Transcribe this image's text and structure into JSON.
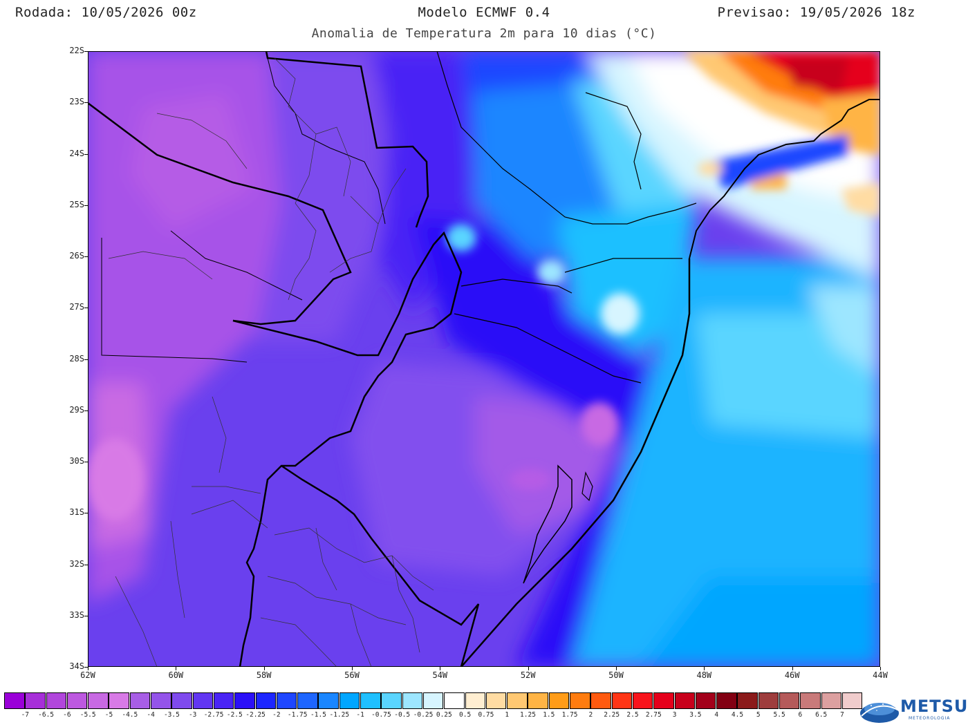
{
  "header": {
    "run": "Rodada: 10/05/2026 00z",
    "model": "Modelo ECMWF 0.4",
    "valid": "Previsao: 19/05/2026 18z",
    "subtitle": "Anomalia de Temperatura 2m para 10 dias (°C)"
  },
  "map": {
    "lon_range": [
      -62,
      -44
    ],
    "lat_range": [
      -34,
      -22
    ],
    "y_ticks": [
      "22S",
      "23S",
      "24S",
      "25S",
      "26S",
      "27S",
      "28S",
      "29S",
      "30S",
      "31S",
      "32S",
      "33S",
      "34S"
    ],
    "x_ticks": [
      "62W",
      "60W",
      "58W",
      "56W",
      "54W",
      "52W",
      "50W",
      "48W",
      "46W",
      "44W"
    ]
  },
  "colorbar": {
    "colors": [
      "#9a00d8",
      "#a72fd9",
      "#b146dc",
      "#bd58e0",
      "#c869e3",
      "#d87ae6",
      "#a85ee6",
      "#9454ea",
      "#7f4aee",
      "#6236f2",
      "#4a24f5",
      "#2b10f7",
      "#1d26ff",
      "#1f47ff",
      "#1e66ff",
      "#1a86ff",
      "#00a6ff",
      "#1fc0ff",
      "#5ad5ff",
      "#9de6ff",
      "#d7f5ff",
      "#ffffff",
      "#ffeed1",
      "#ffdca3",
      "#ffc872",
      "#ffb445",
      "#ff9c18",
      "#ff7c0f",
      "#ff5a0f",
      "#ff3515",
      "#f8141c",
      "#e5001b",
      "#c8001b",
      "#a3001a",
      "#820012",
      "#8b1a1a",
      "#9e3d3d",
      "#b55a5a",
      "#c97a7a",
      "#dca0a0",
      "#f0cccc"
    ],
    "labels": [
      "-7",
      "-6.5",
      "-6",
      "-5.5",
      "-5",
      "-4.5",
      "-4",
      "-3.5",
      "-3",
      "-2.75",
      "-2.5",
      "-2.25",
      "-2",
      "-1.75",
      "-1.5",
      "-1.25",
      "-1",
      "-0.75",
      "-0.5",
      "-0.25",
      "0.25",
      "0.5",
      "0.75",
      "1",
      "1.25",
      "1.5",
      "1.75",
      "2",
      "2.25",
      "2.5",
      "2.75",
      "3",
      "3.5",
      "4",
      "4.5",
      "5",
      "5.5",
      "6",
      "6.5",
      "7"
    ]
  },
  "logo": {
    "name": "METSUL",
    "subtitle": "METEOROLOGIA"
  }
}
